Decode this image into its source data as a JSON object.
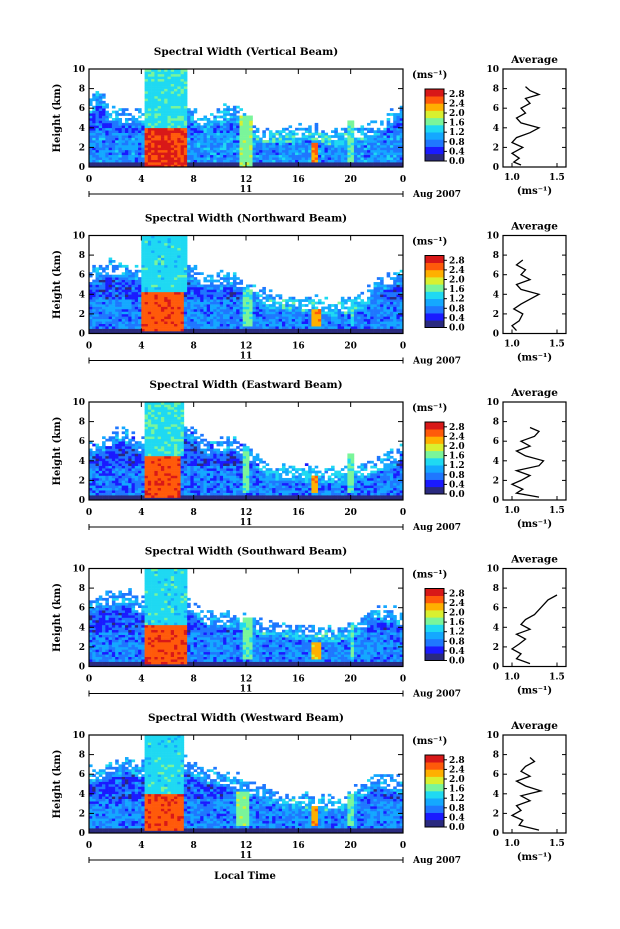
{
  "figure": {
    "xlabel": "Local Time",
    "date_label": "Aug 2007",
    "day_label": "11",
    "ylabel": "Height (km)",
    "colorbar_unit": "(ms⁻¹)",
    "avg_title": "Average",
    "avg_xlabel": "(ms⁻¹)"
  },
  "chart_data": [
    {
      "type": "heatmap",
      "title": "Spectral Width (Vertical Beam)",
      "xlabel": "",
      "ylabel": "Height (km)",
      "xlim": [
        0,
        24
      ],
      "ylim": [
        0,
        10
      ],
      "x_ticks": [
        "0",
        "4",
        "8",
        "12",
        "16",
        "20",
        "0"
      ],
      "y_ticks": [
        "0",
        "2",
        "4",
        "6",
        "8",
        "10"
      ],
      "colorbar": {
        "label": "(ms⁻¹)",
        "ticks": [
          "0.0",
          "0.4",
          "0.8",
          "1.2",
          "1.6",
          "2.0",
          "2.4",
          "2.8"
        ],
        "range": [
          0,
          3.0
        ],
        "colors": [
          "#2a2a7f",
          "#1a1aff",
          "#1f77ff",
          "#14a8ff",
          "#1fd9f2",
          "#7af59a",
          "#d9f030",
          "#ffb000",
          "#ff5a0a",
          "#d81818"
        ]
      },
      "field": {
        "bg": 0.65,
        "tops": [
          [
            0,
            6.9
          ],
          [
            1,
            8.1
          ],
          [
            1.5,
            6
          ],
          [
            4,
            5.6
          ],
          [
            5.5,
            9.3
          ],
          [
            7.5,
            6.3
          ],
          [
            9,
            5
          ],
          [
            11,
            6.5
          ],
          [
            12,
            5.2
          ],
          [
            13,
            4
          ],
          [
            15,
            3.9
          ],
          [
            17,
            4.3
          ],
          [
            19,
            3.5
          ],
          [
            20,
            4.1
          ],
          [
            22,
            4.5
          ],
          [
            24,
            6.8
          ]
        ],
        "strong": [
          [
            4.2,
            7.5,
            0,
            4.1,
            2.75
          ],
          [
            4.3,
            7.5,
            4.1,
            10,
            1.4
          ],
          [
            11.6,
            12.4,
            0,
            5.2,
            1.7
          ],
          [
            17,
            17.6,
            0.5,
            2.6,
            2.4
          ],
          [
            19.8,
            20.3,
            0.5,
            4.7,
            1.6
          ]
        ]
      },
      "average": {
        "xlim": [
          0.9,
          1.6
        ],
        "x_ticks": [
          "1.0",
          "1.5"
        ],
        "ylim": [
          0,
          10
        ],
        "y_ticks": [
          "0",
          "2",
          "4",
          "6",
          "8",
          "10"
        ],
        "height": [
          0.2,
          0.5,
          0.9,
          1.4,
          2,
          2.5,
          3,
          3.5,
          4,
          4.5,
          5,
          5.5,
          6,
          6.5,
          7,
          7.4,
          7.8,
          8.2
        ],
        "value": [
          1.1,
          1.02,
          1.08,
          1.0,
          1.12,
          1.0,
          1.05,
          1.2,
          1.3,
          1.1,
          1.05,
          1.15,
          1.1,
          1.2,
          1.15,
          1.3,
          1.2,
          1.15
        ]
      }
    },
    {
      "type": "heatmap",
      "title": "Spectral Width (Northward Beam)",
      "xlabel": "",
      "ylabel": "Height (km)",
      "xlim": [
        0,
        24
      ],
      "ylim": [
        0,
        10
      ],
      "x_ticks": [
        "0",
        "4",
        "8",
        "12",
        "16",
        "20",
        "0"
      ],
      "y_ticks": [
        "0",
        "2",
        "4",
        "6",
        "8",
        "10"
      ],
      "colorbar": {
        "label": "(ms⁻¹)",
        "ticks": [
          "0.0",
          "0.4",
          "0.8",
          "1.2",
          "1.6",
          "2.0",
          "2.4",
          "2.8"
        ],
        "range": [
          0,
          3.0
        ],
        "colors": [
          "#2a2a7f",
          "#1a1aff",
          "#1f77ff",
          "#14a8ff",
          "#1fd9f2",
          "#7af59a",
          "#d9f030",
          "#ffb000",
          "#ff5a0a",
          "#d81818"
        ]
      },
      "field": {
        "bg": 0.6,
        "tops": [
          [
            0,
            6.5
          ],
          [
            1.5,
            7.3
          ],
          [
            3,
            7.2
          ],
          [
            4,
            6.5
          ],
          [
            5,
            9.5
          ],
          [
            7,
            7.5
          ],
          [
            9,
            6
          ],
          [
            11,
            6.2
          ],
          [
            12,
            5.3
          ],
          [
            14,
            4
          ],
          [
            17,
            3.6
          ],
          [
            19,
            3.3
          ],
          [
            21,
            4
          ],
          [
            22,
            5.5
          ],
          [
            24,
            6.8
          ]
        ],
        "strong": [
          [
            4.1,
            7.3,
            0.3,
            4.2,
            2.6
          ],
          [
            4.1,
            7.5,
            4.2,
            10,
            1.35
          ],
          [
            11.8,
            12.4,
            0.8,
            4.4,
            1.6
          ],
          [
            17,
            17.7,
            0.8,
            2.5,
            2.3
          ],
          [
            19.9,
            20.3,
            0.8,
            3.6,
            1.4
          ]
        ]
      },
      "average": {
        "xlim": [
          0.9,
          1.6
        ],
        "x_ticks": [
          "1.0",
          "1.5"
        ],
        "ylim": [
          0,
          10
        ],
        "y_ticks": [
          "0",
          "2",
          "4",
          "6",
          "8",
          "10"
        ],
        "height": [
          0.3,
          0.8,
          1.3,
          2,
          2.5,
          3,
          3.5,
          4,
          4.5,
          5,
          5.5,
          6,
          6.5,
          7,
          7.5
        ],
        "value": [
          1.05,
          1.0,
          1.08,
          1.12,
          1.02,
          1.1,
          1.2,
          1.3,
          1.1,
          1.05,
          1.2,
          1.1,
          1.15,
          1.05,
          1.12
        ]
      }
    },
    {
      "type": "heatmap",
      "title": "Spectral Width (Eastward Beam)",
      "xlabel": "",
      "ylabel": "Height (km)",
      "xlim": [
        0,
        24
      ],
      "ylim": [
        0,
        10
      ],
      "x_ticks": [
        "0",
        "4",
        "8",
        "12",
        "16",
        "20",
        "0"
      ],
      "y_ticks": [
        "0",
        "2",
        "4",
        "6",
        "8",
        "10"
      ],
      "colorbar": {
        "label": "(ms⁻¹)",
        "ticks": [
          "0.0",
          "0.4",
          "0.8",
          "1.2",
          "1.6",
          "2.0",
          "2.4",
          "2.8"
        ],
        "range": [
          0,
          3.0
        ],
        "colors": [
          "#2a2a7f",
          "#1a1aff",
          "#1f77ff",
          "#14a8ff",
          "#1fd9f2",
          "#7af59a",
          "#d9f030",
          "#ffb000",
          "#ff5a0a",
          "#d81818"
        ]
      },
      "field": {
        "bg": 0.55,
        "tops": [
          [
            0,
            5.8
          ],
          [
            1.5,
            6.5
          ],
          [
            2.5,
            7.5
          ],
          [
            4,
            6
          ],
          [
            5,
            9.5
          ],
          [
            7,
            8
          ],
          [
            9,
            6
          ],
          [
            11,
            6.5
          ],
          [
            12,
            5.5
          ],
          [
            14,
            3.6
          ],
          [
            17,
            3.3
          ],
          [
            19,
            3.2
          ],
          [
            21,
            3.6
          ],
          [
            24,
            5.5
          ]
        ],
        "strong": [
          [
            4.2,
            7,
            0.3,
            4.5,
            2.6
          ],
          [
            4.2,
            7.2,
            4.5,
            10,
            1.4
          ],
          [
            11.7,
            12.3,
            0.8,
            5.5,
            1.6
          ],
          [
            17,
            17.6,
            0.8,
            2.6,
            2.3
          ],
          [
            19.8,
            20.3,
            0.8,
            4.8,
            1.6
          ]
        ]
      },
      "average": {
        "xlim": [
          0.9,
          1.6
        ],
        "x_ticks": [
          "1.0",
          "1.5"
        ],
        "ylim": [
          0,
          10
        ],
        "y_ticks": [
          "0",
          "2",
          "4",
          "6",
          "8",
          "10"
        ],
        "height": [
          0.3,
          0.7,
          1.1,
          1.6,
          2,
          2.5,
          3,
          3.5,
          4,
          4.5,
          5,
          5.5,
          6,
          6.5,
          7,
          7.4
        ],
        "value": [
          1.3,
          1.05,
          1.12,
          1.0,
          1.1,
          1.2,
          1.05,
          1.3,
          1.35,
          1.15,
          1.05,
          1.2,
          1.1,
          1.25,
          1.3,
          1.2
        ]
      }
    },
    {
      "type": "heatmap",
      "title": "Spectral Width (Southward Beam)",
      "xlabel": "",
      "ylabel": "Height (km)",
      "xlim": [
        0,
        24
      ],
      "ylim": [
        0,
        10
      ],
      "x_ticks": [
        "0",
        "4",
        "8",
        "12",
        "16",
        "20",
        "0"
      ],
      "y_ticks": [
        "0",
        "2",
        "4",
        "6",
        "8",
        "10"
      ],
      "colorbar": {
        "label": "(ms⁻¹)",
        "ticks": [
          "0.0",
          "0.4",
          "0.8",
          "1.2",
          "1.6",
          "2.0",
          "2.4",
          "2.8"
        ],
        "range": [
          0,
          3.0
        ],
        "colors": [
          "#2a2a7f",
          "#1a1aff",
          "#1f77ff",
          "#14a8ff",
          "#1fd9f2",
          "#7af59a",
          "#d9f030",
          "#ffb000",
          "#ff5a0a",
          "#d81818"
        ]
      },
      "field": {
        "bg": 0.6,
        "tops": [
          [
            0,
            6.8
          ],
          [
            1.5,
            7.5
          ],
          [
            3,
            7.8
          ],
          [
            4,
            6.5
          ],
          [
            5,
            9.5
          ],
          [
            7,
            7.5
          ],
          [
            9,
            5.5
          ],
          [
            11,
            5.5
          ],
          [
            13,
            4.8
          ],
          [
            15,
            4.5
          ],
          [
            17,
            4.2
          ],
          [
            19,
            4
          ],
          [
            21,
            5
          ],
          [
            22,
            6.5
          ],
          [
            24,
            5.5
          ]
        ],
        "strong": [
          [
            4.3,
            7.5,
            0.3,
            4.2,
            2.6
          ],
          [
            4.3,
            7.6,
            4.2,
            10,
            1.35
          ],
          [
            11.8,
            12.5,
            0.8,
            5,
            1.6
          ],
          [
            17,
            17.7,
            0.8,
            2.5,
            2.2
          ],
          [
            19.9,
            20.3,
            0.8,
            4.5,
            1.5
          ]
        ]
      },
      "average": {
        "xlim": [
          0.9,
          1.6
        ],
        "x_ticks": [
          "1.0",
          "1.5"
        ],
        "ylim": [
          0,
          10
        ],
        "y_ticks": [
          "0",
          "2",
          "4",
          "6",
          "8",
          "10"
        ],
        "height": [
          0.3,
          0.8,
          1.3,
          1.8,
          2.3,
          2.8,
          3.3,
          3.8,
          4.3,
          4.8,
          5.3,
          5.8,
          6.3,
          6.8,
          7.3
        ],
        "value": [
          1.2,
          1.05,
          1.1,
          1.0,
          1.08,
          1.15,
          1.05,
          1.2,
          1.1,
          1.15,
          1.25,
          1.3,
          1.35,
          1.4,
          1.5
        ]
      }
    },
    {
      "type": "heatmap",
      "title": "Spectral Width (Westward Beam)",
      "xlabel": "Local Time",
      "ylabel": "Height (km)",
      "xlim": [
        0,
        24
      ],
      "ylim": [
        0,
        10
      ],
      "x_ticks": [
        "0",
        "4",
        "8",
        "12",
        "16",
        "20",
        "0"
      ],
      "y_ticks": [
        "0",
        "2",
        "4",
        "6",
        "8",
        "10"
      ],
      "colorbar": {
        "label": "(ms⁻¹)",
        "ticks": [
          "0.0",
          "0.4",
          "0.8",
          "1.2",
          "1.6",
          "2.0",
          "2.4",
          "2.8"
        ],
        "range": [
          0,
          3.0
        ],
        "colors": [
          "#2a2a7f",
          "#1a1aff",
          "#1f77ff",
          "#14a8ff",
          "#1fd9f2",
          "#7af59a",
          "#d9f030",
          "#ffb000",
          "#ff5a0a",
          "#d81818"
        ]
      },
      "field": {
        "bg": 0.6,
        "tops": [
          [
            0,
            6.5
          ],
          [
            1.5,
            7
          ],
          [
            3,
            7.8
          ],
          [
            4,
            6.8
          ],
          [
            5,
            9.5
          ],
          [
            7,
            7.8
          ],
          [
            9,
            6.5
          ],
          [
            11,
            6
          ],
          [
            13,
            5
          ],
          [
            15,
            4
          ],
          [
            17,
            3.8
          ],
          [
            19,
            3.6
          ],
          [
            21,
            5
          ],
          [
            22,
            6
          ],
          [
            24,
            5.5
          ]
        ],
        "strong": [
          [
            4.3,
            7.3,
            0.3,
            4.1,
            2.6
          ],
          [
            4.3,
            7.3,
            4.1,
            10,
            1.35
          ],
          [
            11.2,
            12.3,
            0.8,
            4.2,
            1.7
          ],
          [
            17,
            17.6,
            0.8,
            2.8,
            2.3
          ],
          [
            19.8,
            20.3,
            0.8,
            4,
            1.6
          ]
        ]
      },
      "average": {
        "xlim": [
          0.9,
          1.6
        ],
        "x_ticks": [
          "1.0",
          "1.5"
        ],
        "ylim": [
          0,
          10
        ],
        "y_ticks": [
          "0",
          "2",
          "4",
          "6",
          "8",
          "10"
        ],
        "height": [
          0.3,
          0.8,
          1.3,
          1.8,
          2.3,
          2.8,
          3.3,
          3.8,
          4.3,
          4.8,
          5.3,
          5.8,
          6.3,
          6.8,
          7.3,
          7.7
        ],
        "value": [
          1.3,
          1.08,
          1.12,
          1.0,
          1.1,
          1.05,
          1.2,
          1.1,
          1.32,
          1.15,
          1.05,
          1.2,
          1.1,
          1.15,
          1.25,
          1.2
        ]
      }
    }
  ]
}
